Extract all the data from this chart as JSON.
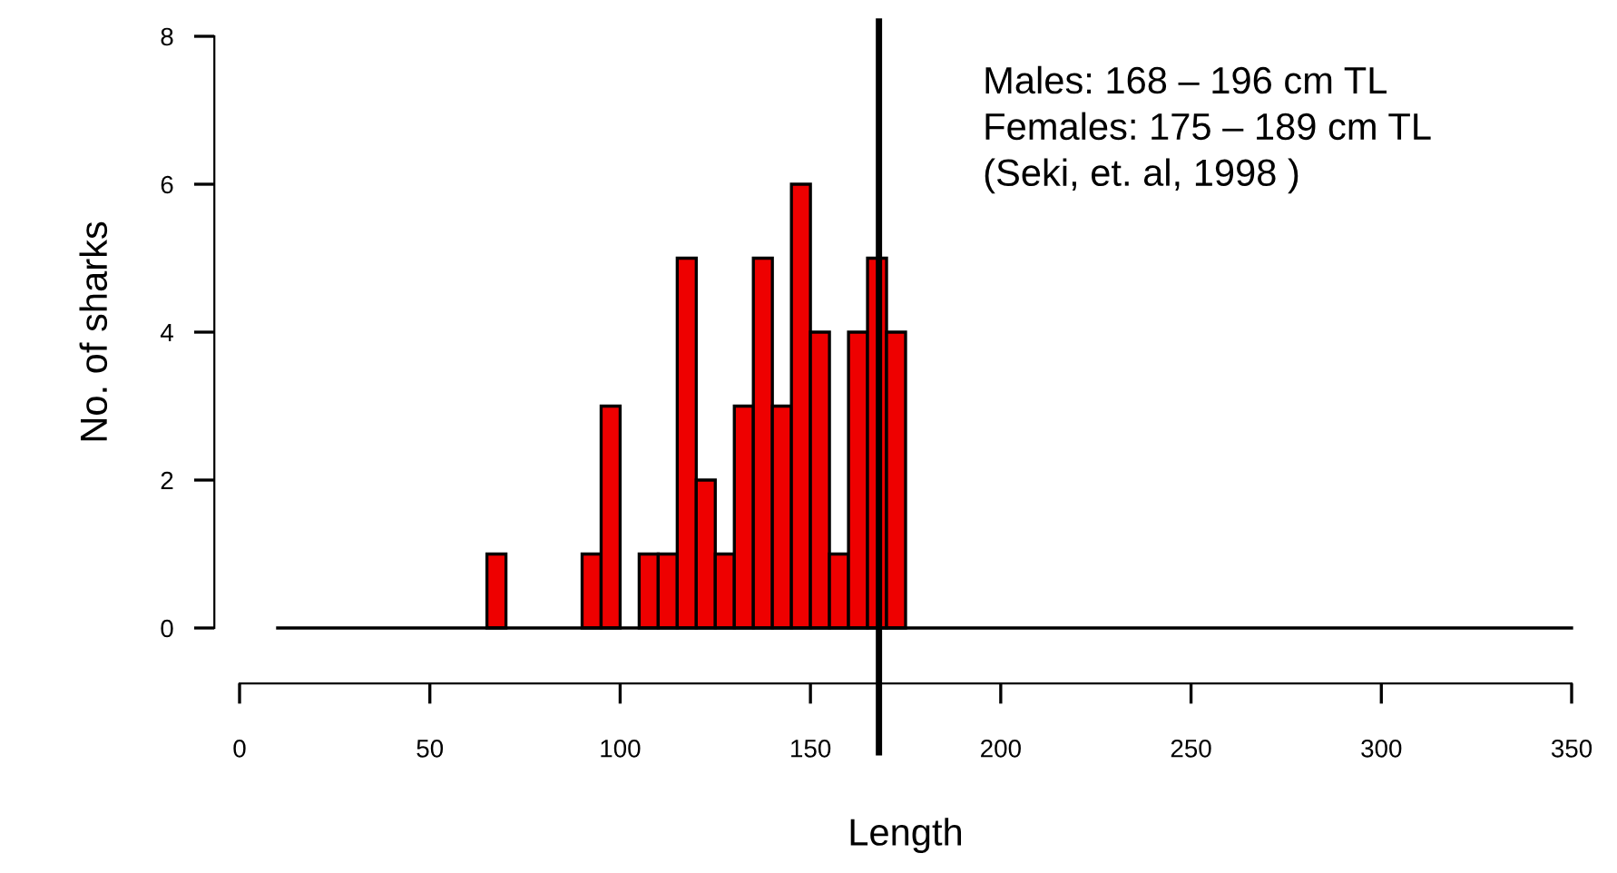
{
  "chart_data": {
    "type": "histogram",
    "xlabel": "Length",
    "ylabel": "No. of sharks",
    "bins": [
      10,
      15,
      20,
      25,
      30,
      35,
      40,
      45,
      50,
      55,
      60,
      65,
      70,
      75,
      80,
      85,
      90,
      95,
      100,
      105,
      110,
      115,
      120,
      125,
      130,
      135,
      140,
      145,
      150,
      155,
      160,
      165,
      170,
      175,
      180,
      185,
      190,
      195,
      200,
      205,
      210,
      215,
      220,
      225,
      230,
      235,
      240,
      245,
      250,
      255,
      260,
      265,
      270,
      275,
      280,
      285,
      290,
      295,
      300,
      305,
      310,
      315,
      320,
      325,
      330,
      335,
      340,
      345,
      350
    ],
    "values": [
      0,
      0,
      0,
      0,
      0,
      0,
      0,
      0,
      0,
      0,
      0,
      1,
      0,
      0,
      0,
      0,
      1,
      3,
      0,
      1,
      1,
      5,
      2,
      1,
      3,
      5,
      3,
      6,
      4,
      1,
      4,
      5,
      4,
      0,
      0,
      0,
      0,
      0,
      0,
      0,
      0,
      0,
      0,
      0,
      0,
      0,
      0,
      0,
      0,
      0,
      0,
      0,
      0,
      0,
      0,
      0,
      0,
      0,
      0,
      0,
      0,
      0,
      0,
      0,
      0,
      0,
      0,
      0
    ],
    "color": "#ee0000",
    "xlim": [
      0,
      350
    ],
    "ylim": [
      0,
      8
    ],
    "xticks": [
      0,
      50,
      100,
      150,
      200,
      250,
      300,
      350
    ],
    "yticks": [
      0,
      2,
      4,
      6,
      8
    ],
    "grid": false,
    "legend": false,
    "ref_lines": [
      {
        "axis": "x",
        "value": 168,
        "color": "#000000"
      }
    ],
    "annotations": [
      "Males: 168 – 196 cm TL",
      "Females: 175 – 189 cm TL",
      "(Seki, et. al, 1998 )"
    ]
  }
}
